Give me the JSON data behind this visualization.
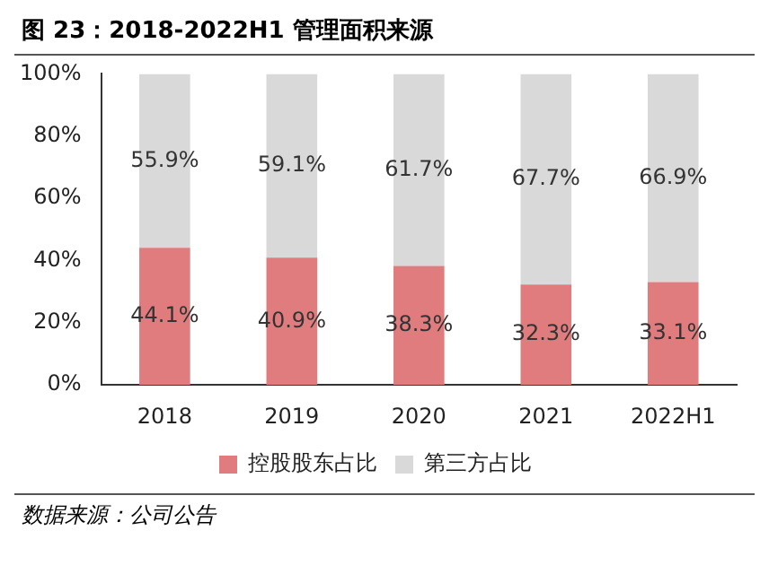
{
  "chart_data": {
    "type": "bar",
    "title": "图 23：2018-2022H1 管理面积来源",
    "categories": [
      "2018",
      "2019",
      "2020",
      "2021",
      "2022H1"
    ],
    "stacked": true,
    "series": [
      {
        "name": "控股股东占比",
        "color": "#e07c7d",
        "values": [
          44.1,
          40.9,
          38.3,
          32.3,
          33.1
        ],
        "value_labels": [
          "44.1%",
          "40.9%",
          "38.3%",
          "32.3%",
          "33.1%"
        ]
      },
      {
        "name": "第三方占比",
        "color": "#d9d9d9",
        "values": [
          55.9,
          59.1,
          61.7,
          67.7,
          66.9
        ],
        "value_labels": [
          "55.9%",
          "59.1%",
          "61.7%",
          "67.7%",
          "66.9%"
        ]
      }
    ],
    "ylim": [
      0,
      100
    ],
    "yticks": [
      {
        "value": 0,
        "label": "0%"
      },
      {
        "value": 20,
        "label": "20%"
      },
      {
        "value": 40,
        "label": "40%"
      },
      {
        "value": 60,
        "label": "60%"
      },
      {
        "value": 80,
        "label": "80%"
      },
      {
        "value": 100,
        "label": "100%"
      }
    ],
    "grid": false,
    "legend": "bottom",
    "annotations": [
      "数据来源：公司公告"
    ]
  }
}
